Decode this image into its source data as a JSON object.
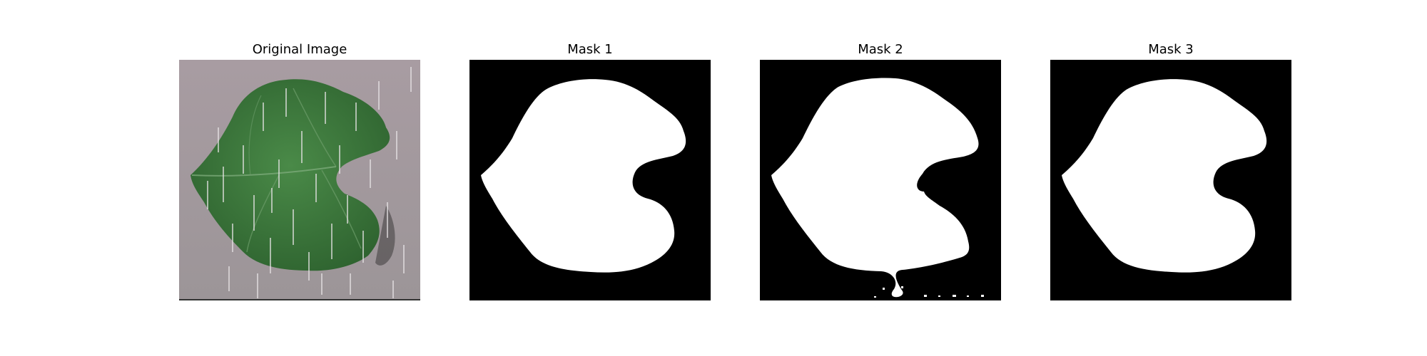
{
  "panels": [
    {
      "title": "Original Image"
    },
    {
      "title": "Mask 1"
    },
    {
      "title": "Mask 2"
    },
    {
      "title": "Mask 3"
    }
  ],
  "colors": {
    "background": "#a39a9e",
    "leaf": "#3f7a3e",
    "mask_foreground": "#ffffff",
    "mask_background": "#000000"
  }
}
